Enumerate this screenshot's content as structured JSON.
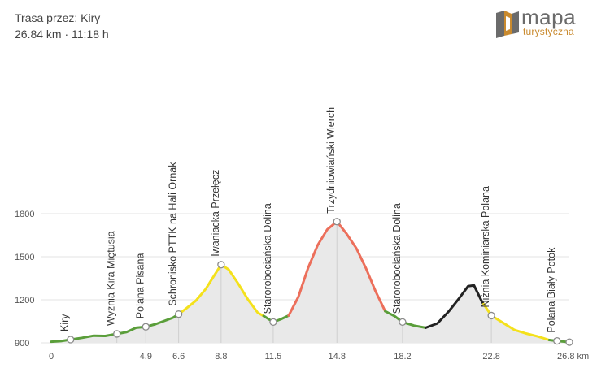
{
  "header": {
    "title": "Trasa przez: Kiry",
    "stats": "26.84 km · 11:18 h"
  },
  "logo": {
    "main": "mapa",
    "sub": "turystyczna"
  },
  "chart_data": {
    "type": "area",
    "xlim": [
      0,
      26.84
    ],
    "ylim": [
      900,
      1800
    ],
    "y_ticks": [
      900,
      1200,
      1500,
      1800
    ],
    "x_ticks": [
      {
        "value": 0,
        "label": "0"
      },
      {
        "value": 4.9,
        "label": "4.9"
      },
      {
        "value": 6.6,
        "label": "6.6"
      },
      {
        "value": 8.8,
        "label": "8.8"
      },
      {
        "value": 11.5,
        "label": "11.5"
      },
      {
        "value": 14.8,
        "label": "14.8"
      },
      {
        "value": 18.2,
        "label": "18.2"
      },
      {
        "value": 22.8,
        "label": "22.8"
      },
      {
        "value": 26.8,
        "label": "26.8 km"
      }
    ],
    "elevation_profile": [
      [
        0,
        908
      ],
      [
        0.5,
        912
      ],
      [
        1.1,
        925
      ],
      [
        1.6,
        935
      ],
      [
        2.2,
        950
      ],
      [
        2.8,
        948
      ],
      [
        3.3,
        960
      ],
      [
        3.9,
        975
      ],
      [
        4.4,
        1005
      ],
      [
        4.9,
        1012
      ],
      [
        5.4,
        1030
      ],
      [
        5.9,
        1055
      ],
      [
        6.3,
        1075
      ],
      [
        6.6,
        1100
      ],
      [
        7.0,
        1140
      ],
      [
        7.5,
        1195
      ],
      [
        8.0,
        1275
      ],
      [
        8.4,
        1360
      ],
      [
        8.8,
        1445
      ],
      [
        9.2,
        1410
      ],
      [
        9.7,
        1310
      ],
      [
        10.2,
        1200
      ],
      [
        10.7,
        1110
      ],
      [
        11.1,
        1080
      ],
      [
        11.5,
        1045
      ],
      [
        11.9,
        1065
      ],
      [
        12.3,
        1090
      ],
      [
        12.8,
        1220
      ],
      [
        13.3,
        1420
      ],
      [
        13.8,
        1580
      ],
      [
        14.3,
        1690
      ],
      [
        14.8,
        1745
      ],
      [
        15.3,
        1660
      ],
      [
        15.8,
        1560
      ],
      [
        16.3,
        1420
      ],
      [
        16.8,
        1260
      ],
      [
        17.3,
        1120
      ],
      [
        17.8,
        1085
      ],
      [
        18.2,
        1045
      ],
      [
        18.8,
        1020
      ],
      [
        19.4,
        1005
      ],
      [
        20.0,
        1035
      ],
      [
        20.6,
        1120
      ],
      [
        21.1,
        1205
      ],
      [
        21.6,
        1295
      ],
      [
        21.9,
        1300
      ],
      [
        22.3,
        1190
      ],
      [
        22.8,
        1090
      ],
      [
        23.4,
        1040
      ],
      [
        24.0,
        990
      ],
      [
        24.6,
        965
      ],
      [
        25.2,
        945
      ],
      [
        25.8,
        920
      ],
      [
        26.3,
        912
      ],
      [
        26.84,
        905
      ]
    ],
    "difficulty_segments": [
      {
        "from": 0,
        "to": 6.6,
        "color": "#5a9e3a"
      },
      {
        "from": 6.6,
        "to": 11.0,
        "color": "#f4e11c"
      },
      {
        "from": 11.0,
        "to": 12.3,
        "color": "#5a9e3a"
      },
      {
        "from": 12.3,
        "to": 17.3,
        "color": "#ec6f5b"
      },
      {
        "from": 17.3,
        "to": 19.4,
        "color": "#5a9e3a"
      },
      {
        "from": 19.4,
        "to": 22.4,
        "color": "#222222"
      },
      {
        "from": 22.4,
        "to": 25.8,
        "color": "#f4e11c"
      },
      {
        "from": 25.8,
        "to": 26.84,
        "color": "#5a9e3a"
      }
    ],
    "waypoints": [
      {
        "name": "Kiry",
        "x": 1.0
      },
      {
        "name": "Wyżnia Kira Miętusia",
        "x": 3.4
      },
      {
        "name": "Polana Pisana",
        "x": 4.9
      },
      {
        "name": "Schronisko PTTK na Hali Ornak",
        "x": 6.6
      },
      {
        "name": "Iwaniacka Przełęcz",
        "x": 8.8
      },
      {
        "name": "Starorobociańska Dolina",
        "x": 11.5
      },
      {
        "name": "Trzydniowiański Wierch",
        "x": 14.8
      },
      {
        "name": "Starorobociańska Dolina",
        "x": 18.2
      },
      {
        "name": "Niżnia Kominiarska Polana",
        "x": 22.8
      },
      {
        "name": "Polana Biały Potok",
        "x": 26.2
      }
    ],
    "colors": {
      "area_fill": "#e9e9e9",
      "grid": "#e3e3e3",
      "guide": "#cfcfcf",
      "marker_stroke": "#8a8a8a"
    }
  }
}
